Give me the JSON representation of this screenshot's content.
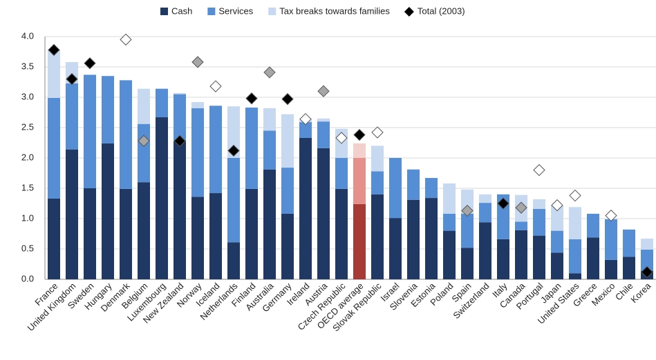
{
  "chart_data": {
    "type": "stacked_bar_with_markers",
    "categories": [
      "France",
      "United Kingdom",
      "Sweden",
      "Hungary",
      "Denmark",
      "Belgium",
      "Luxembourg",
      "New Zealand",
      "Norway",
      "Iceland",
      "Netherlands",
      "Finland",
      "Australia",
      "Germany",
      "Ireland",
      "Austria",
      "Czech Republic",
      "OECD average",
      "Slovak Republic",
      "Israel",
      "Slovenia",
      "Estonia",
      "Poland",
      "Spain",
      "Switzerland",
      "Italy",
      "Canada",
      "Portugal",
      "Japan",
      "United States",
      "Greece",
      "Mexico",
      "Chile",
      "Korea"
    ],
    "series": [
      {
        "name": "Cash",
        "color": "#1f3864",
        "values": [
          1.33,
          2.14,
          1.5,
          2.24,
          1.49,
          1.6,
          2.67,
          2.28,
          1.36,
          1.42,
          0.61,
          1.49,
          1.81,
          1.08,
          2.33,
          2.16,
          1.49,
          1.24,
          1.4,
          1.01,
          1.31,
          1.34,
          0.8,
          0.52,
          0.94,
          0.66,
          0.81,
          0.72,
          0.44,
          0.1,
          0.69,
          0.32,
          0.37,
          0.14
        ]
      },
      {
        "name": "Services",
        "color": "#558ed5",
        "values": [
          1.66,
          1.09,
          1.87,
          1.11,
          1.79,
          0.96,
          0.47,
          0.77,
          1.46,
          1.44,
          1.39,
          1.34,
          0.64,
          0.76,
          0.26,
          0.44,
          0.51,
          0.76,
          0.38,
          0.99,
          0.5,
          0.33,
          0.28,
          0.56,
          0.32,
          0.74,
          0.14,
          0.44,
          0.36,
          0.56,
          0.39,
          0.67,
          0.45,
          0.35
        ]
      },
      {
        "name": "Tax breaks towards families",
        "color": "#c6d9f1",
        "values": [
          0.79,
          0.35,
          0,
          0,
          0,
          0.58,
          0,
          0.02,
          0.1,
          0,
          0.85,
          0,
          0.37,
          0.88,
          0.06,
          0.05,
          0.48,
          0.24,
          0.42,
          0,
          0,
          0,
          0.5,
          0.4,
          0.14,
          0,
          0.44,
          0.16,
          0.42,
          0.53,
          0,
          0,
          0,
          0.18
        ]
      }
    ],
    "highlight_index": 17,
    "highlight_colors": [
      "#a83a36",
      "#e6908b",
      "#f4d0cd"
    ],
    "markers": {
      "name": "Total (2003)",
      "color": "#000000",
      "values": [
        3.78,
        3.3,
        3.56,
        null,
        3.95,
        2.28,
        null,
        2.28,
        3.58,
        3.18,
        2.12,
        2.98,
        3.41,
        2.97,
        2.64,
        3.1,
        2.33,
        2.38,
        2.42,
        null,
        null,
        null,
        null,
        1.13,
        null,
        1.25,
        1.18,
        1.8,
        1.22,
        1.38,
        null,
        1.05,
        null,
        0.12
      ],
      "colors": [
        "#000000",
        "#000000",
        "#000000",
        null,
        "#ffffff",
        "#a6a6a6",
        null,
        "#000000",
        "#a6a6a6",
        "#ffffff",
        "#000000",
        "#000000",
        "#a6a6a6",
        "#000000",
        "#ffffff",
        "#a6a6a6",
        "#ffffff",
        "#000000",
        "#ffffff",
        null,
        null,
        null,
        null,
        "#a6a6a6",
        null,
        "#000000",
        "#a6a6a6",
        "#ffffff",
        "#ffffff",
        "#ffffff",
        null,
        "#ffffff",
        null,
        "#000000"
      ]
    },
    "ylim": [
      0,
      4
    ],
    "yticks": [
      {
        "value": 0,
        "label": "0.0"
      },
      0.5,
      {
        "value": 1,
        "label": "1.0"
      },
      1.5,
      {
        "value": 2,
        "label": "2.0"
      },
      2.5,
      {
        "value": 3,
        "label": "3.0"
      },
      3.5,
      {
        "value": 4,
        "label": "4.0"
      }
    ],
    "grid": true
  }
}
